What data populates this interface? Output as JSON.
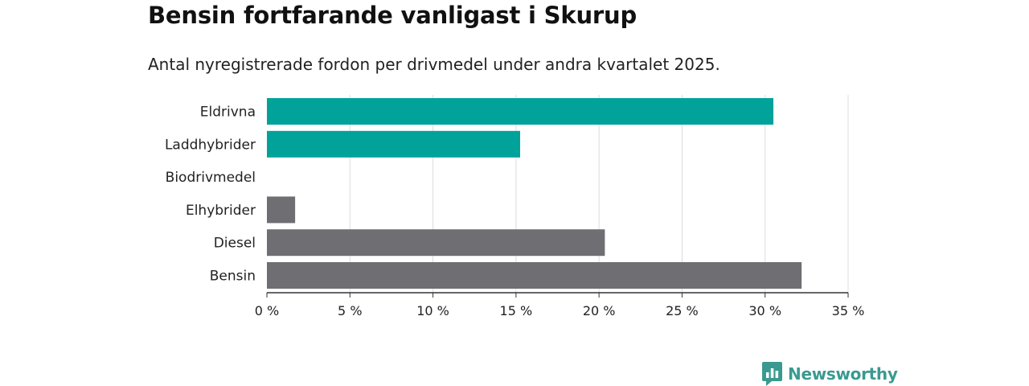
{
  "header": {
    "title": "Bensin fortfarande vanligast i Skurup",
    "subtitle": "Antal nyregistrerade fordon per drivmedel under andra kvartalet 2025."
  },
  "brand": {
    "name": "Newsworthy",
    "icon": "newsworthy-logo-icon",
    "color": "#3a9a90"
  },
  "chart_data": {
    "type": "bar",
    "orientation": "horizontal",
    "categories": [
      "Eldrivna",
      "Laddhybrider",
      "Biodrivmedel",
      "Elhybrider",
      "Diesel",
      "Bensin"
    ],
    "values": [
      30.5,
      15.25,
      0,
      1.7,
      20.35,
      32.2
    ],
    "colors": [
      "#00a29a",
      "#00a29a",
      "#00a29a",
      "#6e6e73",
      "#6e6e73",
      "#6e6e73"
    ],
    "xlim": [
      0,
      35
    ],
    "xticks": [
      0,
      5,
      10,
      15,
      20,
      25,
      30,
      35
    ],
    "xtick_labels": [
      "0 %",
      "5 %",
      "10 %",
      "15 %",
      "20 %",
      "25 %",
      "30 %",
      "35 %"
    ],
    "xlabel": "",
    "ylabel": "",
    "grid": true,
    "legend": "none"
  }
}
